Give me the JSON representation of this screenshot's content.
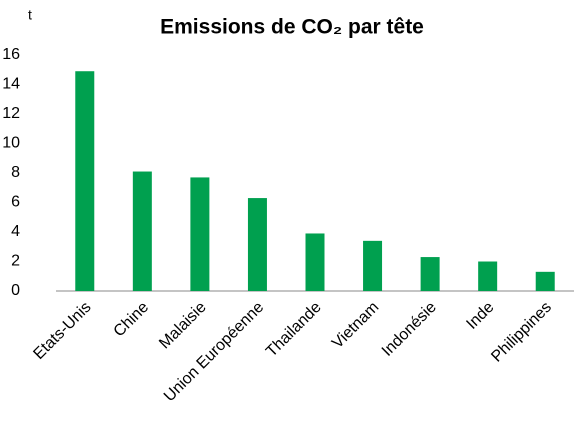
{
  "chart_data": {
    "type": "bar",
    "title": "Emissions de CO₂ par tête",
    "y_label": "t",
    "categories": [
      "Etats-Unis",
      "Chine",
      "Malaisie",
      "Union Européenne",
      "Thailande",
      "Vietnam",
      "Indonésie",
      "Inde",
      "Philippines"
    ],
    "values": [
      14.9,
      8.1,
      7.7,
      6.3,
      3.9,
      3.4,
      2.3,
      2.0,
      1.3
    ],
    "color": "#00a04f",
    "ylim": [
      0,
      16
    ],
    "yticks": [
      0,
      2,
      4,
      6,
      8,
      10,
      12,
      14,
      16
    ],
    "grid": false
  }
}
